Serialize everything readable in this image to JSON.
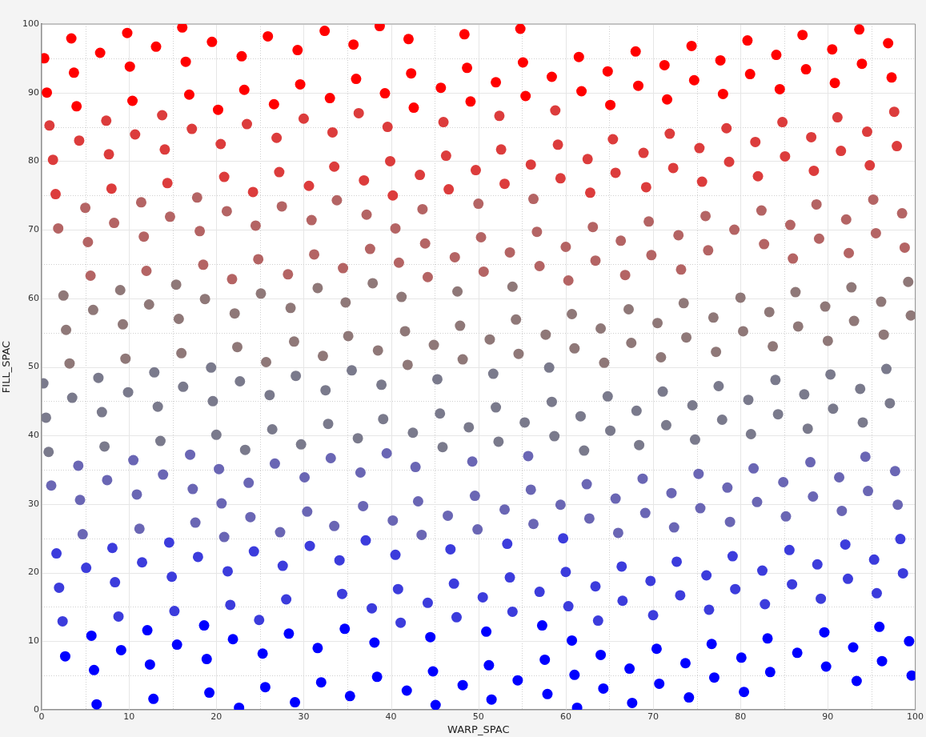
{
  "chart_data": {
    "type": "scatter",
    "xlabel": "WARP_SPAC",
    "ylabel": "FILL_SPAC",
    "xlim": [
      0,
      100
    ],
    "ylim": [
      0,
      100
    ],
    "xticks": [
      0,
      {
        "value": 5,
        "label": null
      },
      10,
      {
        "value": 15,
        "label": null
      },
      20,
      {
        "value": 25,
        "label": null
      },
      30,
      {
        "value": 35,
        "label": null
      },
      40,
      {
        "value": 45,
        "label": null
      },
      50,
      {
        "value": 55,
        "label": null
      },
      60,
      {
        "value": 65,
        "label": null
      },
      70,
      {
        "value": 75,
        "label": null
      },
      80,
      {
        "value": 85,
        "label": null
      },
      90,
      {
        "value": 95,
        "label": null
      },
      100
    ],
    "yticks": [
      0,
      {
        "value": 5,
        "label": null
      },
      10,
      {
        "value": 15,
        "label": null
      },
      20,
      {
        "value": 25,
        "label": null
      },
      30,
      {
        "value": 35,
        "label": null
      },
      40,
      {
        "value": 45,
        "label": null
      },
      50,
      {
        "value": 55,
        "label": null
      },
      60,
      {
        "value": 65,
        "label": null
      },
      70,
      {
        "value": 75,
        "label": null
      },
      80,
      {
        "value": 85,
        "label": null
      },
      90,
      {
        "value": 95,
        "label": null
      },
      100
    ],
    "grid": true,
    "legend": false,
    "marker": "circle",
    "series": [
      {
        "color": "#ff0000",
        "x": [
          0.3,
          3.4,
          0.6,
          3.7,
          4,
          6.7,
          9.8,
          10.1,
          10.4,
          13.1,
          16.1,
          16.5,
          16.9,
          19.5,
          20.2,
          22.9,
          23.2,
          25.9,
          26.6,
          29.3,
          29.6,
          32.4,
          33,
          35.7,
          36,
          38.7,
          39.3,
          42,
          42.3,
          42.6,
          45.7,
          48.4,
          48.7,
          49.1,
          52,
          54.8,
          55.1,
          55.4,
          58.4,
          61.5,
          61.8,
          64.8,
          65.1,
          68,
          68.3,
          71.3,
          71.6,
          74.4,
          74.7,
          77.7,
          78,
          80.8,
          81.1,
          84.1,
          84.5,
          87.1,
          87.5,
          90.5,
          90.8,
          93.6,
          93.9,
          96.9,
          97.3
        ],
        "values": [
          95,
          97.9,
          90,
          92.9,
          88,
          95.8,
          98.7,
          93.8,
          88.8,
          96.7,
          99.5,
          94.5,
          89.7,
          97.4,
          87.5,
          95.3,
          90.4,
          98.2,
          88.3,
          96.2,
          91.2,
          99,
          89.2,
          97,
          92,
          99.7,
          89.9,
          97.8,
          92.8,
          87.8,
          90.7,
          98.5,
          93.6,
          88.7,
          91.5,
          99.3,
          94.4,
          89.5,
          92.3,
          95.2,
          90.2,
          93.1,
          88.2,
          96,
          91,
          94,
          89,
          96.8,
          91.8,
          94.7,
          89.8,
          97.6,
          92.7,
          95.5,
          90.5,
          98.4,
          93.4,
          96.3,
          91.4,
          99.2,
          94.2,
          97.2,
          92.2
        ]
      },
      {
        "color": "#dc3c3c",
        "x": [
          0.9,
          4.3,
          1.3,
          1.6,
          7.4,
          7.7,
          8,
          10.7,
          13.8,
          14.1,
          14.4,
          17.2,
          20.5,
          20.9,
          23.5,
          24.2,
          26.9,
          27.2,
          30,
          30.6,
          33.3,
          33.5,
          36.3,
          36.9,
          39.6,
          39.9,
          40.2,
          43.3,
          46,
          46.3,
          46.6,
          49.7,
          52.4,
          52.6,
          53,
          56,
          58.8,
          59.1,
          59.4,
          62.5,
          62.8,
          65.4,
          65.7,
          68.9,
          69.2,
          71.9,
          72.3,
          75.3,
          75.6,
          78.4,
          78.7,
          81.7,
          82,
          84.8,
          85.1,
          88.1,
          88.4,
          91.1,
          91.5,
          94.5,
          94.8,
          97.6,
          97.9
        ],
        "values": [
          85.2,
          83,
          80.2,
          75.2,
          85.9,
          81,
          76,
          83.9,
          86.7,
          81.7,
          76.8,
          84.7,
          82.5,
          77.7,
          85.4,
          75.5,
          83.4,
          78.4,
          86.2,
          76.4,
          84.2,
          79.2,
          87,
          77.2,
          85,
          80,
          75,
          78,
          85.7,
          80.8,
          75.9,
          78.7,
          86.6,
          81.7,
          76.7,
          79.5,
          87.4,
          82.4,
          77.5,
          80.3,
          75.4,
          83.2,
          78.3,
          81.2,
          76.2,
          84,
          79,
          81.9,
          77,
          84.8,
          79.9,
          82.8,
          77.8,
          85.7,
          80.7,
          83.5,
          78.6,
          86.4,
          81.5,
          84.3,
          79.4,
          87.2,
          82.2
        ]
      },
      {
        "color": "#b46464",
        "x": [
          1.9,
          5,
          5.3,
          5.6,
          8.3,
          11.4,
          11.7,
          12,
          14.7,
          17.8,
          18.1,
          18.5,
          21.2,
          21.8,
          24.5,
          24.8,
          27.5,
          28.2,
          30.9,
          31.2,
          33.8,
          34.5,
          37.2,
          37.6,
          40.5,
          40.9,
          43.6,
          43.9,
          44.2,
          47.3,
          50,
          50.3,
          50.6,
          53.6,
          56.3,
          56.7,
          57,
          60,
          60.3,
          63.1,
          63.4,
          66.3,
          66.8,
          69.5,
          69.8,
          72.9,
          73.2,
          76,
          76.3,
          79.3,
          82.4,
          82.7,
          85.7,
          86,
          88.7,
          89,
          92.1,
          92.4,
          95.2,
          95.5,
          98.5,
          98.8
        ],
        "values": [
          70.2,
          73.2,
          68.2,
          63.3,
          71,
          74,
          69,
          64,
          71.9,
          74.7,
          69.8,
          64.9,
          72.7,
          62.8,
          70.6,
          65.7,
          73.4,
          63.5,
          71.4,
          66.4,
          74.3,
          64.4,
          72.2,
          67.2,
          70.2,
          65.2,
          73,
          68,
          63.1,
          66,
          73.8,
          68.9,
          63.9,
          66.7,
          74.5,
          69.7,
          64.7,
          67.5,
          62.6,
          70.4,
          65.5,
          68.4,
          63.4,
          71.2,
          66.3,
          69.2,
          64.2,
          72,
          67,
          70,
          72.8,
          67.9,
          70.7,
          65.8,
          73.7,
          68.7,
          71.5,
          66.6,
          74.4,
          69.5,
          72.4,
          67.4
        ]
      },
      {
        "color": "#8f7878",
        "x": [
          2.5,
          5.9,
          2.8,
          3.2,
          9,
          12.3,
          9.3,
          9.6,
          15.4,
          15.7,
          16,
          18.7,
          22.1,
          22.4,
          25.1,
          25.7,
          28.5,
          28.9,
          31.6,
          32.2,
          34.8,
          35.1,
          37.9,
          38.5,
          41.2,
          41.6,
          44.9,
          47.6,
          47.9,
          48.2,
          51.3,
          53.9,
          54.3,
          54.6,
          57.7,
          60.7,
          61,
          64,
          64.4,
          41.9,
          67.2,
          67.5,
          70.5,
          70.9,
          73.5,
          73.8,
          76.9,
          77.2,
          80,
          80.3,
          83.3,
          83.7,
          86.3,
          86.6,
          89.7,
          90,
          92.7,
          93,
          96.1,
          96.4,
          99.2,
          99.5
        ],
        "values": [
          60.4,
          58.3,
          55.4,
          50.5,
          61.2,
          59.1,
          56.2,
          51.2,
          62,
          57,
          52,
          59.9,
          57.8,
          52.9,
          60.7,
          50.7,
          58.6,
          53.7,
          61.5,
          51.6,
          59.4,
          54.5,
          62.2,
          52.4,
          60.2,
          55.2,
          53.2,
          61,
          56,
          51.1,
          54,
          61.7,
          56.9,
          51.9,
          54.7,
          57.7,
          52.7,
          55.6,
          50.6,
          50.3,
          58.4,
          53.5,
          56.4,
          51.4,
          59.3,
          54.3,
          57.2,
          52.2,
          60.1,
          55.2,
          58,
          53,
          60.9,
          55.9,
          58.8,
          53.8,
          61.6,
          56.7,
          59.5,
          54.7,
          62.4,
          57.5
        ]
      },
      {
        "color": "#7a7a8c",
        "x": [
          0.2,
          6.5,
          12.9,
          19.4,
          22.7,
          29.1,
          3.5,
          9.9,
          16.2,
          19.6,
          26.1,
          32.5,
          0.5,
          6.9,
          13.3,
          26.4,
          32.8,
          0.8,
          7.2,
          13.6,
          20,
          23.3,
          29.7,
          35.5,
          45.3,
          51.7,
          58.1,
          38.9,
          52,
          58.4,
          64.8,
          45.6,
          39.1,
          48.9,
          55.3,
          61.7,
          65.1,
          36.2,
          42.5,
          45.9,
          52.3,
          58.7,
          62.1,
          96.7,
          71.1,
          77.5,
          84,
          90.3,
          68.1,
          74.5,
          80.9,
          87.3,
          93.7,
          97.1,
          71.5,
          77.9,
          84.3,
          90.6,
          68.4,
          74.8,
          81.2,
          87.7,
          94
        ],
        "values": [
          47.6,
          48.4,
          49.2,
          49.9,
          47.9,
          48.7,
          45.5,
          46.3,
          47.1,
          45,
          45.9,
          46.6,
          42.6,
          43.4,
          44.2,
          40.9,
          41.7,
          37.6,
          38.4,
          39.2,
          40.1,
          37.9,
          38.7,
          49.5,
          48.2,
          49,
          49.9,
          47.4,
          44.1,
          44.9,
          45.7,
          43.2,
          42.4,
          41.2,
          41.9,
          42.8,
          40.7,
          39.6,
          40.4,
          38.3,
          39.1,
          39.9,
          37.8,
          49.7,
          46.4,
          47.2,
          48.1,
          48.9,
          43.6,
          44.4,
          45.2,
          46,
          46.8,
          44.7,
          41.5,
          42.3,
          43.1,
          43.9,
          38.6,
          39.4,
          40.2,
          41,
          41.9
        ]
      },
      {
        "color": "#6a66b4",
        "x": [
          4.2,
          10.5,
          17,
          26.7,
          33.1,
          1.1,
          7.5,
          13.9,
          20.3,
          23.7,
          30.1,
          4.4,
          10.9,
          17.3,
          20.6,
          23.9,
          30.4,
          4.7,
          11.2,
          17.6,
          20.9,
          27.3,
          33.5,
          39.5,
          49.3,
          55.7,
          36.5,
          42.8,
          49.6,
          56,
          62.4,
          65.7,
          43.1,
          36.8,
          46.5,
          53,
          59.4,
          40.2,
          43.5,
          49.9,
          56.3,
          62.7,
          66,
          68.8,
          75.2,
          81.5,
          88,
          94.3,
          97.7,
          72.1,
          78.5,
          84.9,
          91.3,
          94.6,
          69.1,
          75.4,
          81.9,
          88.3,
          98,
          72.4,
          78.8,
          85.2,
          91.6
        ],
        "values": [
          35.6,
          36.4,
          37.2,
          35.9,
          36.7,
          32.7,
          33.5,
          34.3,
          35.1,
          33.1,
          33.9,
          30.6,
          31.4,
          32.2,
          30.1,
          28.1,
          28.9,
          25.6,
          26.4,
          27.3,
          25.2,
          25.9,
          26.8,
          37.4,
          36.2,
          37,
          34.6,
          35.4,
          31.2,
          32.1,
          32.9,
          30.8,
          30.4,
          29.7,
          28.3,
          29.2,
          29.9,
          27.6,
          25.5,
          26.3,
          27.1,
          27.9,
          25.8,
          33.7,
          34.4,
          35.2,
          36.1,
          36.9,
          34.8,
          31.6,
          32.4,
          33.2,
          33.9,
          31.9,
          28.7,
          29.4,
          30.3,
          31.1,
          29.9,
          26.6,
          27.4,
          28.2,
          29
        ]
      },
      {
        "color": "#3c3cdc",
        "x": [
          1.7,
          8.1,
          14.6,
          17.9,
          24.3,
          30.7,
          5.1,
          11.5,
          21.3,
          27.6,
          2,
          8.4,
          14.9,
          21.6,
          28,
          2.4,
          8.8,
          15.2,
          24.9,
          37.1,
          46.8,
          53.3,
          59.7,
          34.1,
          40.5,
          53.6,
          60,
          66.4,
          34.4,
          40.8,
          47.2,
          50.5,
          57,
          63.4,
          37.8,
          44.2,
          53.9,
          60.3,
          66.5,
          41.1,
          47.5,
          63.7,
          72.7,
          79.1,
          85.6,
          92,
          98.3,
          69.7,
          76.1,
          82.5,
          88.8,
          95.3,
          73.1,
          79.4,
          85.9,
          92.3,
          98.6,
          70,
          76.4,
          82.8,
          89.2,
          95.6
        ],
        "values": [
          22.8,
          23.6,
          24.4,
          22.3,
          23.1,
          23.9,
          20.7,
          21.5,
          20.2,
          21,
          17.8,
          18.6,
          19.4,
          15.3,
          16.1,
          12.9,
          13.6,
          14.4,
          13.1,
          24.7,
          23.4,
          24.2,
          25,
          21.8,
          22.6,
          19.3,
          20.1,
          20.9,
          16.9,
          17.6,
          18.4,
          16.4,
          17.2,
          18,
          14.8,
          15.6,
          14.3,
          15.1,
          15.9,
          12.7,
          13.5,
          13,
          21.6,
          22.4,
          23.3,
          24.1,
          24.9,
          18.8,
          19.6,
          20.3,
          21.2,
          21.9,
          16.7,
          17.6,
          18.3,
          19.1,
          19.9,
          13.8,
          14.6,
          15.4,
          16.2,
          17
        ]
      },
      {
        "color": "#0000ff",
        "x": [
          5.7,
          12.1,
          18.6,
          21.9,
          28.3,
          2.7,
          9.1,
          15.5,
          25.3,
          31.6,
          6,
          12.4,
          18.9,
          32,
          6.3,
          12.8,
          19.2,
          22.6,
          25.6,
          29,
          34.7,
          57.3,
          38.1,
          44.5,
          50.9,
          60.7,
          38.4,
          44.8,
          51.2,
          57.6,
          64,
          35.3,
          41.8,
          48.2,
          54.5,
          61,
          64.3,
          45.1,
          51.5,
          57.9,
          61.3,
          70.4,
          76.7,
          83.1,
          89.6,
          95.9,
          67.3,
          73.7,
          80.1,
          86.5,
          92.9,
          99.3,
          70.7,
          77,
          83.4,
          89.8,
          96.2,
          67.6,
          74.1,
          80.4,
          93.3,
          99.6
        ],
        "values": [
          10.8,
          11.6,
          12.3,
          10.3,
          11.1,
          7.8,
          8.7,
          9.5,
          8.2,
          9,
          5.8,
          6.6,
          7.4,
          4,
          0.8,
          1.6,
          2.5,
          0.3,
          3.3,
          1.1,
          11.8,
          12.3,
          9.8,
          10.6,
          11.4,
          10.1,
          4.8,
          5.6,
          6.5,
          7.3,
          8,
          2,
          2.8,
          3.6,
          4.3,
          5.1,
          3.1,
          0.7,
          1.5,
          2.3,
          0.3,
          8.9,
          9.6,
          10.4,
          11.3,
          12.1,
          6,
          6.8,
          7.6,
          8.3,
          9.1,
          10,
          3.8,
          4.7,
          5.5,
          6.3,
          7.1,
          1,
          1.8,
          2.6,
          4.2,
          5
        ]
      }
    ]
  }
}
